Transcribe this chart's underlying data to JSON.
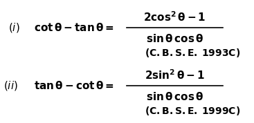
{
  "background_color": "#ffffff",
  "eq1_label": "(\\textit{i})",
  "eq1_lhs": "cot \\theta - tan \\theta =",
  "eq1_num": "2cos$^2$ \\theta - 1",
  "eq1_den": "sin \\theta cos \\theta",
  "eq1_source": "(C.B.S.E. 1993C)",
  "eq2_label": "(\\textit{ii})",
  "eq2_lhs": "tan \\theta - cot \\theta =",
  "eq2_num": "2sin$^2$ \\theta - 1",
  "eq2_den": "sin \\theta cos \\theta",
  "eq2_source": "(C.B.S.E. 1999C)",
  "font_size_main": 11,
  "font_size_source": 10
}
